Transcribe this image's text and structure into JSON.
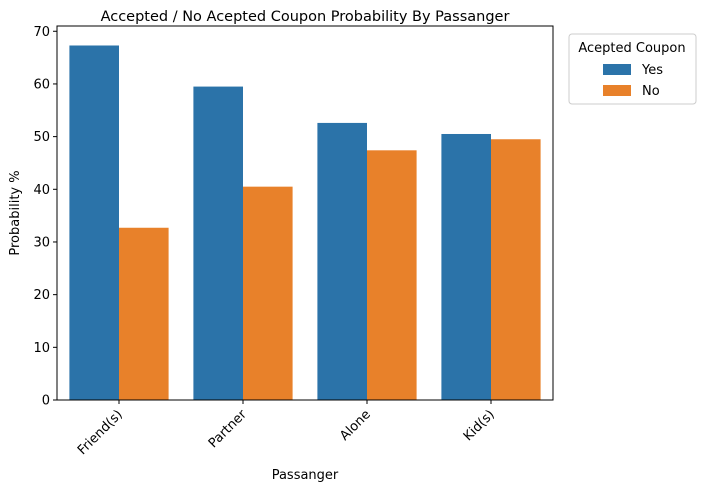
{
  "chart_data": {
    "type": "bar",
    "title": "Accepted / No Acepted Coupon Probability By Passanger",
    "xlabel": "Passanger",
    "ylabel": "Probability %",
    "categories": [
      "Friend(s)",
      "Partner",
      "Alone",
      "Kid(s)"
    ],
    "series": [
      {
        "name": "Yes",
        "color": "#2b73a9",
        "values": [
          67.3,
          59.5,
          52.6,
          50.5
        ]
      },
      {
        "name": "No",
        "color": "#e8812a",
        "values": [
          32.7,
          40.5,
          47.4,
          49.5
        ]
      }
    ],
    "ylim": [
      0,
      71
    ],
    "yticks": [
      0,
      10,
      20,
      30,
      40,
      50,
      60,
      70
    ],
    "grid": false,
    "legend": {
      "title": "Acepted Coupon",
      "placement": "outside-top-right"
    }
  }
}
